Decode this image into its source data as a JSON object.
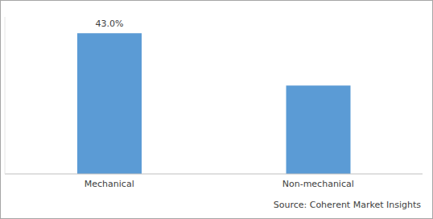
{
  "chart_data": {
    "type": "bar",
    "categories": [
      "Mechanical",
      "Non-mechanical"
    ],
    "values": [
      43.0,
      27
    ],
    "value_labels": [
      "43.0%",
      null
    ],
    "data_labels": true,
    "color": "#5b9bd5",
    "ylim": [
      0,
      48
    ],
    "tick_labels": "x",
    "grid": false,
    "source": "Source: Coherent Market Insights"
  }
}
